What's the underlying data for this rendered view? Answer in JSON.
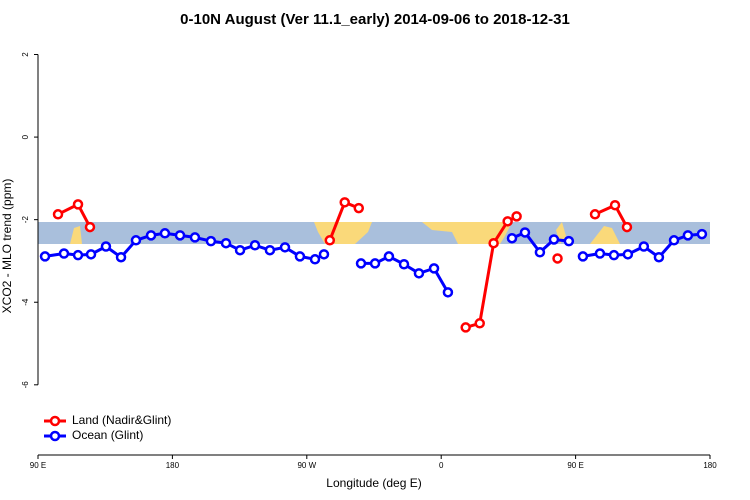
{
  "chart_data": {
    "type": "line",
    "title": "0-10N August (Ver 11.1_early)   2014-09-06 to 2018-12-31",
    "x_label": "Longitude (deg E)",
    "y_label": "XCO2 - MLO trend (ppm)",
    "xlim": [
      90,
      540
    ],
    "ylim": [
      -7.7,
      2.4
    ],
    "xticks": [
      {
        "value": 90,
        "label": "90 E"
      },
      180,
      {
        "value": 270,
        "label": "90 W"
      },
      {
        "value": 360,
        "label": "0"
      },
      {
        "value": 450,
        "label": "90 E"
      },
      {
        "value": 540,
        "label": "180"
      }
    ],
    "yticks": [
      2,
      0,
      -2,
      -4,
      -6
    ],
    "legend": "bottom-left",
    "series": [
      {
        "name": "Land (Nadir&Glint)",
        "color": "#ff0000",
        "x": [
          103.4,
          116.8,
          124.8,
          null,
          285.4,
          295.4,
          304.8,
          null,
          376.4,
          385.8,
          395.1,
          404.5,
          410.5,
          null,
          437.9,
          null,
          463,
          476.4,
          484.4
        ],
        "values": [
          -1.87,
          -1.63,
          -2.18,
          null,
          -2.5,
          -1.58,
          -1.72,
          null,
          -4.61,
          -4.51,
          -2.57,
          -2.04,
          -1.92,
          null,
          -2.94,
          null,
          -1.87,
          -1.65,
          -2.18
        ]
      },
      {
        "name": "Ocean (Glint)",
        "color": "#0000ff",
        "x": [
          94.7,
          107.4,
          116.8,
          125.5,
          135.5,
          145.6,
          155.6,
          165.7,
          175,
          185.1,
          195.1,
          205.8,
          215.9,
          225.3,
          235.3,
          245.3,
          255.4,
          265.4,
          275.5,
          281.5,
          null,
          306.3,
          315.7,
          325,
          335.1,
          345.1,
          355.2,
          364.5,
          null,
          407.4,
          416.1,
          426.1,
          435.5,
          445.5,
          null,
          454.9,
          466.3,
          475.7,
          485,
          495.7,
          505.8,
          515.9,
          525.2,
          534.6
        ],
        "values": [
          -2.89,
          -2.82,
          -2.86,
          -2.84,
          -2.65,
          -2.91,
          -2.5,
          -2.38,
          -2.33,
          -2.38,
          -2.43,
          -2.52,
          -2.57,
          -2.74,
          -2.62,
          -2.74,
          -2.67,
          -2.89,
          -2.96,
          -2.84,
          null,
          -3.06,
          -3.06,
          -2.89,
          -3.08,
          -3.3,
          -3.18,
          -3.76,
          null,
          -2.45,
          -2.31,
          -2.79,
          -2.48,
          -2.52,
          null,
          -2.89,
          -2.82,
          -2.86,
          -2.84,
          -2.65,
          -2.91,
          -2.5,
          -2.38,
          -2.35
        ]
      }
    ]
  }
}
